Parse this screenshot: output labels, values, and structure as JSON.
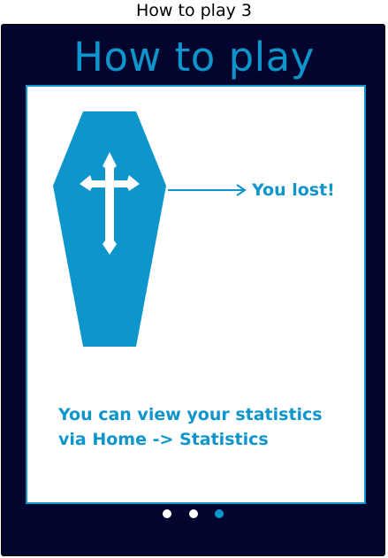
{
  "caption": "How to play 3",
  "screen": {
    "title": "How to play",
    "result_label": "You lost!",
    "stats_line_1": "You can view your statistics",
    "stats_line_2": "via Home -> Statistics",
    "illustration_icon": "coffin-with-cross-icon"
  },
  "pager": {
    "total_pages": 3,
    "current_page": 3
  },
  "colors": {
    "background": "#02062f",
    "accent": "#0d95cc",
    "card": "#ffffff"
  }
}
